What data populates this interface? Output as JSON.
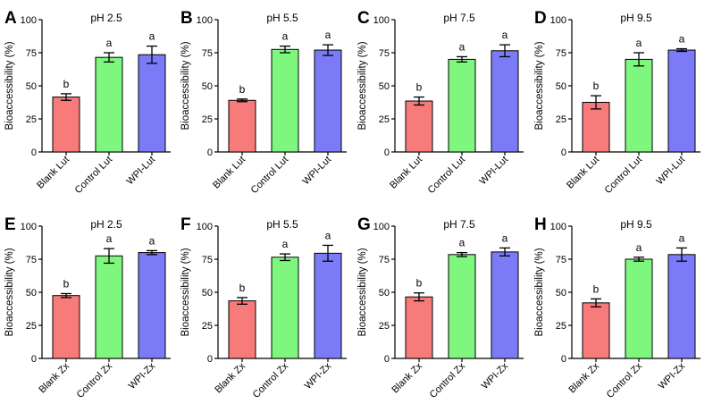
{
  "figure": {
    "colors": [
      "#f87b7b",
      "#7ff77f",
      "#7b7bf8"
    ],
    "axis_color": "#000000"
  },
  "chart_data": [
    {
      "type": "bar",
      "letter": "A",
      "title": "pH 2.5",
      "ylabel": "Bioaccessibility (%)",
      "ylim": [
        0,
        100
      ],
      "yticks": [
        "0",
        "25",
        "50",
        "75",
        "100"
      ],
      "categories": [
        "Blank Lut",
        "Control Lut",
        "WPI-Lut"
      ],
      "values": [
        41.5,
        71.5,
        73.5
      ],
      "errors": [
        2.5,
        3.5,
        6.5
      ],
      "significance": [
        "b",
        "a",
        "a"
      ]
    },
    {
      "type": "bar",
      "letter": "B",
      "title": "pH  5.5",
      "ylabel": "Bioaccessibility (%)",
      "ylim": [
        0,
        100
      ],
      "yticks": [
        "0",
        "25",
        "50",
        "75",
        "100"
      ],
      "categories": [
        "Blank Lut",
        "Control Lut",
        "WPI-Lut"
      ],
      "values": [
        39,
        77.5,
        77
      ],
      "errors": [
        1,
        2.5,
        4
      ],
      "significance": [
        "b",
        "a",
        "a"
      ]
    },
    {
      "type": "bar",
      "letter": "C",
      "title": "pH 7.5",
      "ylabel": "Bioaccessibility (%)",
      "ylim": [
        0,
        100
      ],
      "yticks": [
        "0",
        "25",
        "50",
        "75",
        "100"
      ],
      "categories": [
        "Blank Lut",
        "Control Lut",
        "WPI-Lut"
      ],
      "values": [
        38.5,
        70,
        76.5
      ],
      "errors": [
        3,
        2,
        4.5
      ],
      "significance": [
        "b",
        "a",
        "a"
      ]
    },
    {
      "type": "bar",
      "letter": "D",
      "title": "pH 9.5",
      "ylabel": "Bioaccessibility (%)",
      "ylim": [
        0,
        100
      ],
      "yticks": [
        "0",
        "25",
        "50",
        "75",
        "100"
      ],
      "categories": [
        "Blank Lut",
        "Control Lut",
        "WPI-Lut"
      ],
      "values": [
        37.5,
        70,
        77
      ],
      "errors": [
        5,
        5,
        1
      ],
      "significance": [
        "b",
        "a",
        "a"
      ]
    },
    {
      "type": "bar",
      "letter": "E",
      "title": "pH 2.5",
      "ylabel": "Bioaccessibility (%)",
      "ylim": [
        0,
        100
      ],
      "yticks": [
        "0",
        "25",
        "50",
        "75",
        "100"
      ],
      "categories": [
        "Blank Zx",
        "Control Zx",
        "WPI-Zx"
      ],
      "values": [
        47.5,
        77.5,
        80
      ],
      "errors": [
        1.5,
        5.5,
        1.5
      ],
      "significance": [
        "b",
        "a",
        "a"
      ]
    },
    {
      "type": "bar",
      "letter": "F",
      "title": "pH  5.5",
      "ylabel": "Bioaccessibility (%)",
      "ylim": [
        0,
        100
      ],
      "yticks": [
        "0",
        "25",
        "50",
        "75",
        "100"
      ],
      "categories": [
        "Blank Zx",
        "Control Zx",
        "WPI-Zx"
      ],
      "values": [
        43.5,
        76.5,
        79.5
      ],
      "errors": [
        2.5,
        2.5,
        6
      ],
      "significance": [
        "b",
        "a",
        "a"
      ]
    },
    {
      "type": "bar",
      "letter": "G",
      "title": "pH 7.5",
      "ylabel": "Bioaccessibility (%)",
      "ylim": [
        0,
        100
      ],
      "yticks": [
        "0",
        "25",
        "50",
        "75",
        "100"
      ],
      "categories": [
        "Blank Zx",
        "Control Zx",
        "WPI-Zx"
      ],
      "values": [
        46.5,
        78.5,
        80.5
      ],
      "errors": [
        3,
        1.5,
        3
      ],
      "significance": [
        "b",
        "a",
        "a"
      ]
    },
    {
      "type": "bar",
      "letter": "H",
      "title": "pH 9.5",
      "ylabel": "Bioaccessibility (%)",
      "ylim": [
        0,
        100
      ],
      "yticks": [
        "0",
        "25",
        "50",
        "75",
        "100"
      ],
      "categories": [
        "Blank Zx",
        "Control Zx",
        "WPI-Zx"
      ],
      "values": [
        42,
        75,
        78.5
      ],
      "errors": [
        3,
        1.5,
        5
      ],
      "significance": [
        "b",
        "a",
        "a"
      ]
    }
  ]
}
